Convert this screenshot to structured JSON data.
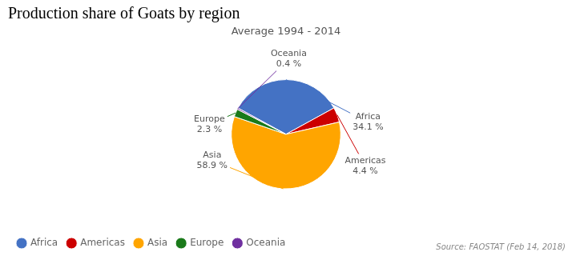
{
  "chart_data": {
    "type": "pie",
    "title": "Production share of Goats by region",
    "subtitle": "Average 1994 - 2014",
    "annotations": [
      "Source: FAOSTAT (Feb 14, 2018)"
    ],
    "categories": [
      "Africa",
      "Americas",
      "Asia",
      "Europe",
      "Oceania"
    ],
    "values": [
      34.1,
      4.4,
      58.9,
      2.3,
      0.4
    ],
    "value_labels": [
      "34.1 %",
      "4.4 %",
      "58.9 %",
      "2.3 %",
      "0.4 %"
    ],
    "colors": [
      "#4472c4",
      "#cc0000",
      "#ffa500",
      "#1a7a1a",
      "#7030a0"
    ],
    "data_labels": true,
    "legend": "bottom"
  }
}
